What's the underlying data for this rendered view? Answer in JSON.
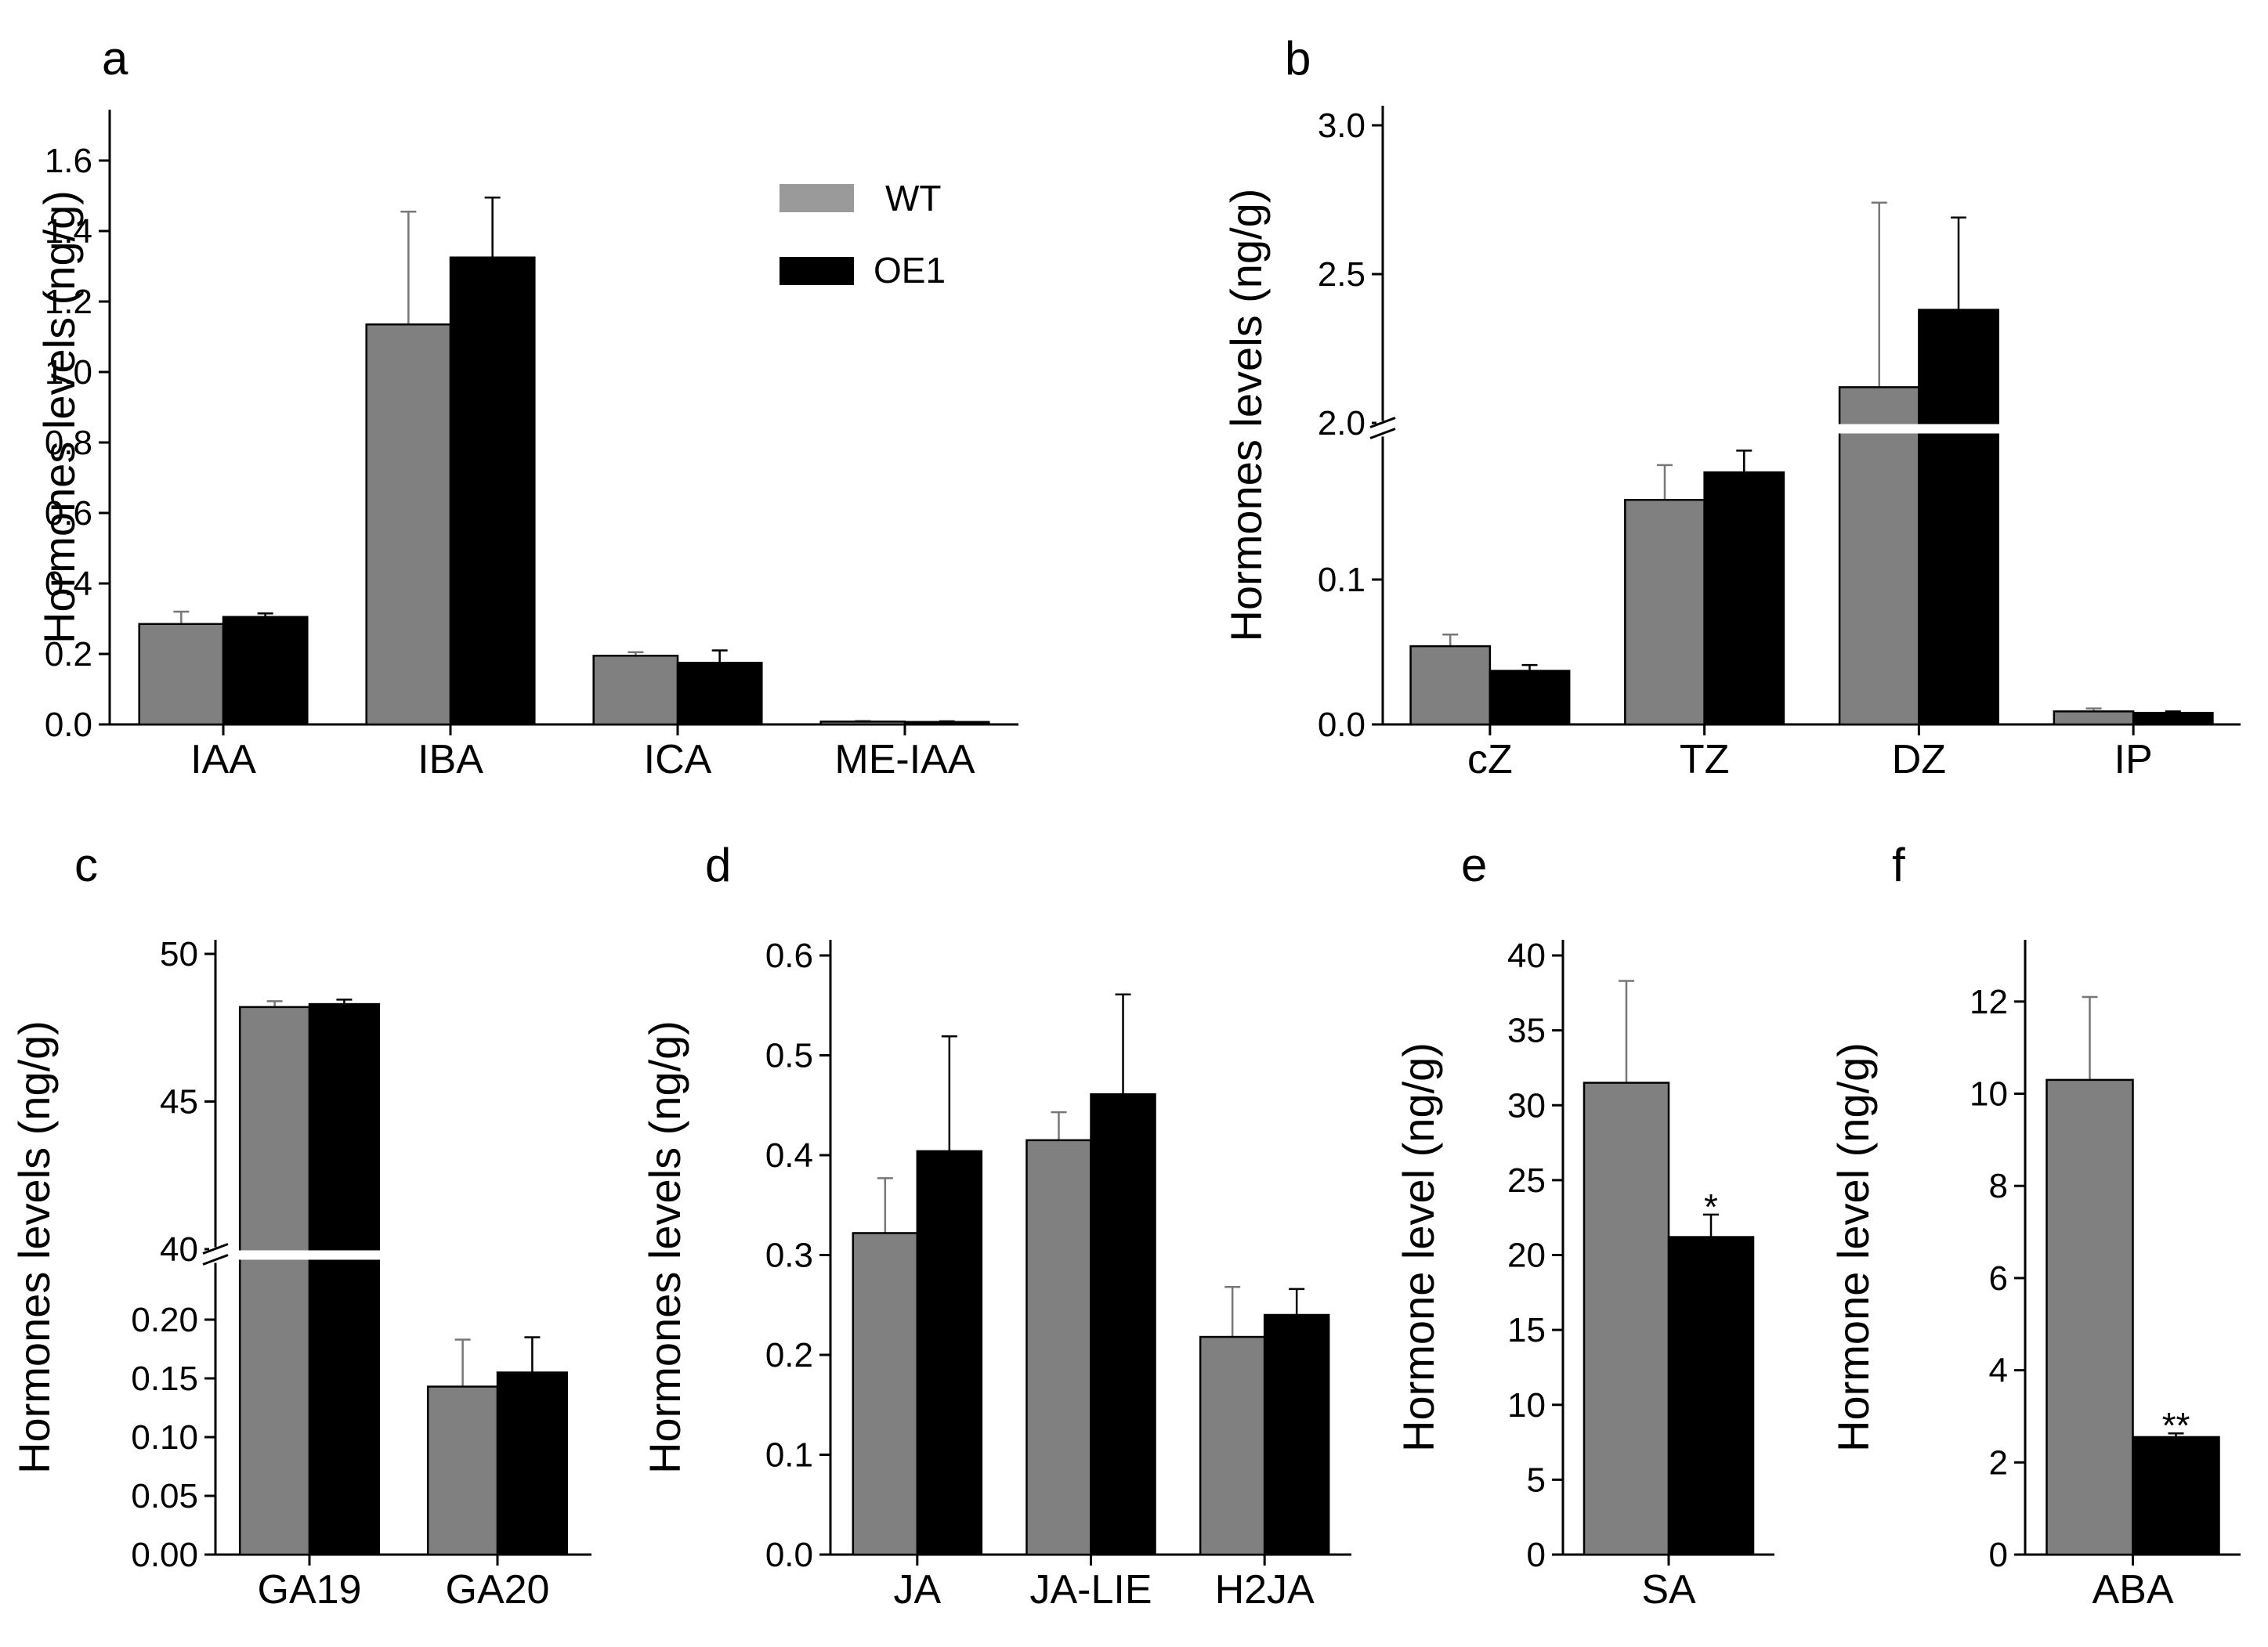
{
  "legend": {
    "wt_label": "WT",
    "oe_label": "OE1"
  },
  "colors": {
    "wt": "#808080",
    "oe1": "#000000"
  },
  "chart_data": [
    {
      "type": "bar",
      "panel": "a",
      "ylabel": "Hormones levels (ng/g)",
      "categories": [
        "IAA",
        "IBA",
        "ICA",
        "ME-IAA"
      ],
      "series": [
        {
          "name": "WT",
          "values": [
            0.285,
            1.135,
            0.195,
            0.008
          ],
          "errors": [
            0.035,
            0.32,
            0.01,
            0.002
          ]
        },
        {
          "name": "OE1",
          "values": [
            0.305,
            1.325,
            0.175,
            0.007
          ],
          "errors": [
            0.01,
            0.17,
            0.035,
            0.002
          ]
        }
      ],
      "ylim": [
        0,
        1.7
      ],
      "yticks": [
        "0.0",
        "0.2",
        "0.4",
        "0.6",
        "0.8",
        "1.0",
        "1.2",
        "1.4",
        "1.6"
      ],
      "ytick_values": [
        0,
        0.2,
        0.4,
        0.6,
        0.8,
        1.0,
        1.2,
        1.4,
        1.6
      ],
      "legend": "top-right"
    },
    {
      "type": "bar",
      "panel": "b",
      "ylabel": "Hormones levels (ng/g)",
      "categories": [
        "cZ",
        "TZ",
        "DZ",
        "IP"
      ],
      "series": [
        {
          "name": "WT",
          "values": [
            0.054,
            0.155,
            2.12,
            0.009
          ],
          "errors": [
            0.008,
            0.024,
            0.62,
            0.002
          ]
        },
        {
          "name": "OE1",
          "values": [
            0.037,
            0.174,
            2.38,
            0.008
          ],
          "errors": [
            0.004,
            0.015,
            0.31,
            0.001
          ]
        }
      ],
      "broken_axis": {
        "lower": [
          0,
          0.2
        ],
        "upper": [
          2.0,
          3.0
        ]
      },
      "yticks_lower": [
        "0.0",
        "0.1"
      ],
      "ytick_values_lower": [
        0,
        0.1
      ],
      "yticks_upper": [
        "2.0",
        "2.5",
        "3.0"
      ],
      "ytick_values_upper": [
        2.0,
        2.5,
        3.0
      ]
    },
    {
      "type": "bar",
      "panel": "c",
      "ylabel": "Hormones levels (ng/g)",
      "categories": [
        "GA19",
        "GA20"
      ],
      "series": [
        {
          "name": "WT",
          "values": [
            48.2,
            0.143
          ],
          "errors": [
            0.2,
            0.04
          ]
        },
        {
          "name": "OE1",
          "values": [
            48.3,
            0.155
          ],
          "errors": [
            0.15,
            0.03
          ]
        }
      ],
      "broken_axis": {
        "lower": [
          0,
          0.25
        ],
        "upper": [
          40,
          50
        ]
      },
      "yticks_lower": [
        "0.00",
        "0.05",
        "0.10",
        "0.15",
        "0.20"
      ],
      "ytick_values_lower": [
        0,
        0.05,
        0.1,
        0.15,
        0.2
      ],
      "yticks_upper": [
        "40",
        "45",
        "50"
      ],
      "ytick_values_upper": [
        40,
        45,
        50
      ]
    },
    {
      "type": "bar",
      "panel": "d",
      "ylabel": "Hormones levels (ng/g)",
      "categories": [
        "JA",
        "JA-LIE",
        "H2JA"
      ],
      "series": [
        {
          "name": "WT",
          "values": [
            0.322,
            0.415,
            0.218
          ],
          "errors": [
            0.055,
            0.028,
            0.05
          ]
        },
        {
          "name": "OE1",
          "values": [
            0.404,
            0.461,
            0.24
          ],
          "errors": [
            0.115,
            0.1,
            0.026
          ]
        }
      ],
      "ylim": [
        0,
        0.6
      ],
      "yticks": [
        "0.0",
        "0.1",
        "0.2",
        "0.3",
        "0.4",
        "0.5",
        "0.6"
      ],
      "ytick_values": [
        0,
        0.1,
        0.2,
        0.3,
        0.4,
        0.5,
        0.6
      ]
    },
    {
      "type": "bar",
      "panel": "e",
      "ylabel": "Hormone level (ng/g)",
      "categories": [
        "SA"
      ],
      "series": [
        {
          "name": "WT",
          "values": [
            31.5
          ],
          "errors": [
            6.8
          ]
        },
        {
          "name": "OE1",
          "values": [
            21.2
          ],
          "errors": [
            1.5
          ]
        }
      ],
      "ylim": [
        0,
        40
      ],
      "yticks": [
        "0",
        "5",
        "10",
        "15",
        "20",
        "25",
        "30",
        "35",
        "40"
      ],
      "ytick_values": [
        0,
        5,
        10,
        15,
        20,
        25,
        30,
        35,
        40
      ],
      "annotation": "*"
    },
    {
      "type": "bar",
      "panel": "f",
      "ylabel": "Hormone level (ng/g)",
      "categories": [
        "ABA"
      ],
      "series": [
        {
          "name": "WT",
          "values": [
            10.3
          ],
          "errors": [
            1.8
          ]
        },
        {
          "name": "OE1",
          "values": [
            2.55
          ],
          "errors": [
            0.08
          ]
        }
      ],
      "ylim": [
        0,
        13
      ],
      "yticks": [
        "0",
        "2",
        "4",
        "6",
        "8",
        "10",
        "12"
      ],
      "ytick_values": [
        0,
        2,
        4,
        6,
        8,
        10,
        12
      ],
      "annotation": "**"
    }
  ]
}
